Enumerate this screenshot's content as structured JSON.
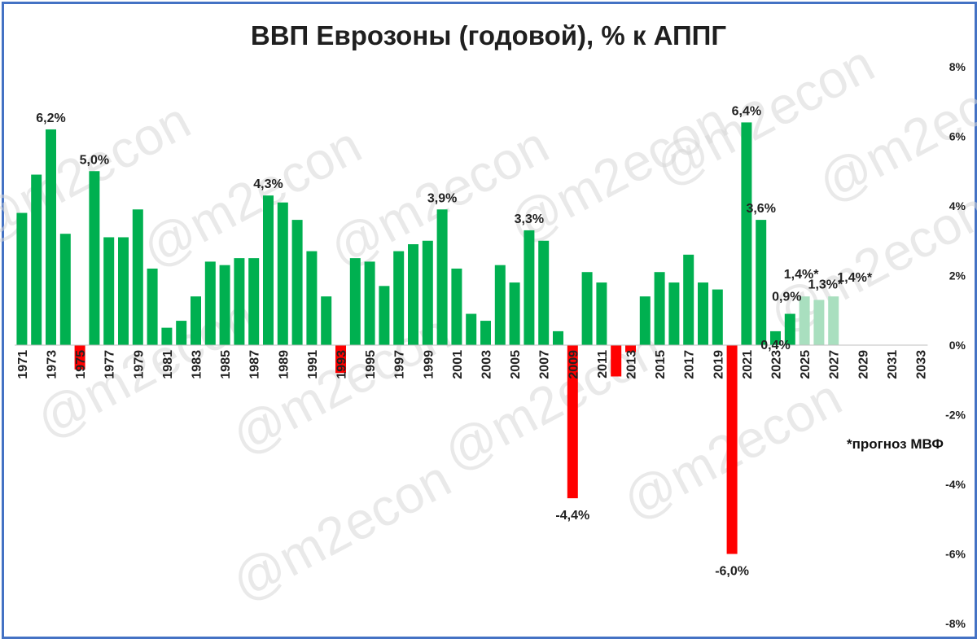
{
  "chart_data": {
    "type": "bar",
    "title": "ВВП Еврозоны (годовой), % к АППГ",
    "watermark": "@m2econ",
    "note": "*прогноз МВФ",
    "ylim": [
      -8,
      8
    ],
    "yticks": [
      "-8%",
      "-6%",
      "-4%",
      "-2%",
      "0%",
      "2%",
      "4%",
      "6%",
      "8%"
    ],
    "xtick_labels": [
      "1971",
      "1973",
      "1975",
      "1977",
      "1979",
      "1981",
      "1983",
      "1985",
      "1987",
      "1989",
      "1991",
      "1993",
      "1995",
      "1997",
      "1999",
      "2001",
      "2003",
      "2005",
      "2007",
      "2009",
      "2011",
      "2013",
      "2015",
      "2017",
      "2019",
      "2021",
      "2023",
      "2025",
      "2027",
      "2029",
      "2031",
      "2033"
    ],
    "colors": {
      "positive": "#00B050",
      "negative": "#FF0000",
      "forecast": "#A9DFBF",
      "border": "#4472C4"
    },
    "x": [
      1971,
      1972,
      1973,
      1974,
      1975,
      1976,
      1977,
      1978,
      1979,
      1980,
      1981,
      1982,
      1983,
      1984,
      1985,
      1986,
      1987,
      1988,
      1989,
      1990,
      1991,
      1992,
      1993,
      1994,
      1995,
      1996,
      1997,
      1998,
      1999,
      2000,
      2001,
      2002,
      2003,
      2004,
      2005,
      2006,
      2007,
      2008,
      2009,
      2010,
      2011,
      2012,
      2013,
      2014,
      2015,
      2016,
      2017,
      2018,
      2019,
      2020,
      2021,
      2022,
      2023,
      2024,
      2025,
      2026,
      2027,
      2028,
      2029,
      2030,
      2031,
      2032,
      2033
    ],
    "values": [
      3.8,
      4.9,
      6.2,
      3.2,
      -0.7,
      5.0,
      3.1,
      3.1,
      3.9,
      2.2,
      0.5,
      0.7,
      1.4,
      2.4,
      2.3,
      2.5,
      2.5,
      4.3,
      4.1,
      3.6,
      2.7,
      1.4,
      -0.8,
      2.5,
      2.4,
      1.7,
      2.7,
      2.9,
      3.0,
      3.9,
      2.2,
      0.9,
      0.7,
      2.3,
      1.8,
      3.3,
      3.0,
      0.4,
      -4.4,
      2.1,
      1.8,
      -0.9,
      -0.2,
      1.4,
      2.1,
      1.8,
      2.6,
      1.8,
      1.6,
      -6.0,
      6.4,
      3.6,
      0.4,
      0.9,
      1.4,
      1.3,
      1.4,
      null,
      null,
      null,
      null,
      null,
      null
    ],
    "forecast_from": 2025,
    "data_labels": [
      {
        "x": 1973,
        "text": "6,2%"
      },
      {
        "x": 1976,
        "text": "5,0%"
      },
      {
        "x": 1988,
        "text": "4,3%"
      },
      {
        "x": 2000,
        "text": "3,9%"
      },
      {
        "x": 2006,
        "text": "3,3%"
      },
      {
        "x": 2009,
        "text": "-4,4%"
      },
      {
        "x": 2020,
        "text": "-6,0%"
      },
      {
        "x": 2021,
        "text": "6,4%"
      },
      {
        "x": 2022,
        "text": "3,6%"
      },
      {
        "x": 2023,
        "text": "0,4%"
      },
      {
        "x": 2024,
        "text": "0,9%"
      },
      {
        "x": 2025,
        "text": "1,4%*"
      },
      {
        "x": 2026,
        "text": "1,3%*"
      },
      {
        "x": 2027,
        "text": "1,4%*"
      }
    ]
  }
}
